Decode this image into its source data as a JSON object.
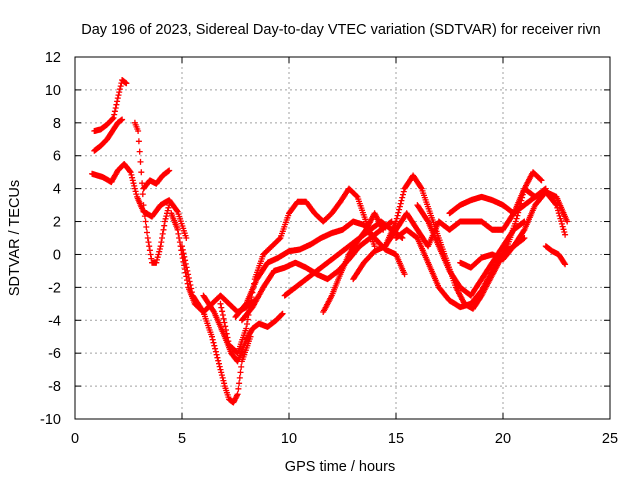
{
  "chart_data": {
    "type": "scatter",
    "title": "Day 196 of 2023, Sidereal Day-to-day VTEC variation (SDTVAR) for receiver rivn",
    "xlabel": "GPS time / hours",
    "ylabel": "SDTVAR / TECUs",
    "xlim": [
      0,
      25
    ],
    "ylim": [
      -10,
      12
    ],
    "x_ticks": [
      "0",
      "5",
      "10",
      "15",
      "20",
      "25"
    ],
    "y_ticks": [
      "-10",
      "-8",
      "-6",
      "-4",
      "-2",
      "0",
      "2",
      "4",
      "6",
      "8",
      "10",
      "12"
    ],
    "grid": true,
    "marker": "+",
    "series_color": "#ff0000",
    "series": [
      {
        "x": [
          0.9,
          1.2,
          1.5,
          1.8,
          2.0,
          2.2,
          2.4
        ],
        "y": [
          7.5,
          7.6,
          7.9,
          8.3,
          9.5,
          10.6,
          10.4
        ]
      },
      {
        "x": [
          0.9,
          1.2,
          1.5,
          1.8,
          2.0,
          2.2
        ],
        "y": [
          6.3,
          6.6,
          7.0,
          7.6,
          8.0,
          8.2
        ]
      },
      {
        "x": [
          0.8,
          1.3,
          1.7,
          2.0,
          2.3,
          2.6,
          2.9,
          3.2,
          3.6,
          4.0,
          4.4,
          4.8,
          5.2
        ],
        "y": [
          4.9,
          4.7,
          4.4,
          5.1,
          5.5,
          5.0,
          3.5,
          2.6,
          2.3,
          3.0,
          3.3,
          2.6,
          1.0
        ]
      },
      {
        "x": [
          2.8,
          2.95,
          3.1,
          3.2,
          3.4,
          3.6,
          3.8,
          4.0,
          4.2,
          4.4
        ],
        "y": [
          8.0,
          7.5,
          5.0,
          3.0,
          1.0,
          -0.5,
          -0.5,
          0.5,
          2.0,
          3.0
        ]
      },
      {
        "x": [
          3.2,
          3.5,
          3.8,
          4.1,
          4.4
        ],
        "y": [
          4.0,
          4.5,
          4.3,
          4.8,
          5.1
        ]
      },
      {
        "x": [
          4.5,
          4.8,
          5.0,
          5.3,
          5.6,
          6.0,
          6.4,
          6.8,
          7.2,
          7.6,
          8.0,
          8.4
        ],
        "y": [
          2.5,
          1.5,
          0.0,
          -2.0,
          -3.0,
          -3.5,
          -3.0,
          -2.5,
          -3.0,
          -3.5,
          -3.2,
          -2.8
        ]
      },
      {
        "x": [
          5.0,
          5.5,
          6.0,
          6.4,
          6.8,
          7.0,
          7.2,
          7.4,
          7.6,
          7.8,
          8.2
        ],
        "y": [
          0.5,
          -2.5,
          -3.5,
          -5.0,
          -7.0,
          -8.0,
          -8.8,
          -9.0,
          -8.5,
          -6.5,
          -5.0
        ]
      },
      {
        "x": [
          6.0,
          6.5,
          7.0,
          7.3,
          7.6,
          8.0,
          8.3,
          8.6,
          9.0,
          9.4,
          9.7
        ],
        "y": [
          -2.5,
          -3.5,
          -5.0,
          -6.0,
          -6.5,
          -5.2,
          -4.5,
          -4.2,
          -4.4,
          -4.0,
          -3.6
        ]
      },
      {
        "x": [
          6.8,
          7.2,
          7.6,
          8.0,
          8.4,
          8.8,
          9.2,
          9.6,
          10.0,
          10.4,
          10.8,
          11.2,
          11.6,
          12.0,
          12.4,
          12.8,
          13.2,
          13.6,
          14.0
        ],
        "y": [
          -3.0,
          -5.5,
          -6.0,
          -4.5,
          -1.5,
          0.0,
          0.5,
          1.0,
          2.5,
          3.2,
          3.2,
          2.5,
          2.0,
          2.5,
          3.2,
          4.0,
          3.5,
          2.0,
          0.5
        ]
      },
      {
        "x": [
          7.5,
          8.0,
          8.5,
          9.0,
          9.5,
          10.0,
          10.5,
          11.0,
          11.5,
          12.0,
          12.5,
          13.0,
          13.5,
          14.0,
          14.5,
          15.0,
          15.4
        ],
        "y": [
          -3.8,
          -3.0,
          -1.5,
          -0.5,
          -0.2,
          0.2,
          0.3,
          0.6,
          1.0,
          1.3,
          1.5,
          2.0,
          1.8,
          1.0,
          0.3,
          0.0,
          -1.2
        ]
      },
      {
        "x": [
          7.8,
          8.3,
          8.8,
          9.3,
          9.8,
          10.3,
          10.8,
          11.3,
          11.8,
          12.3,
          12.8,
          13.3,
          13.8,
          14.3,
          14.8
        ],
        "y": [
          -4.0,
          -3.2,
          -2.0,
          -1.0,
          -0.8,
          -0.5,
          -0.8,
          -1.2,
          -1.5,
          -1.0,
          -0.3,
          0.5,
          1.0,
          1.5,
          2.0
        ]
      },
      {
        "x": [
          9.8,
          10.3,
          10.8,
          11.3,
          11.8,
          12.3,
          12.8,
          13.3,
          13.8,
          14.3,
          14.8,
          15.3
        ],
        "y": [
          -2.5,
          -2.0,
          -1.5,
          -1.0,
          -0.5,
          0.0,
          0.5,
          1.0,
          1.5,
          2.0,
          1.5,
          1.0
        ]
      },
      {
        "x": [
          11.6,
          12.0,
          12.4,
          12.8,
          13.2,
          13.6,
          14.0,
          14.4
        ],
        "y": [
          -3.5,
          -2.5,
          -1.2,
          0.0,
          0.8,
          1.5,
          2.5,
          1.5
        ]
      },
      {
        "x": [
          13.0,
          13.5,
          14.0,
          14.5,
          15.0,
          15.5,
          16.0,
          16.5,
          17.0,
          17.5,
          18.0,
          18.5,
          19.0,
          19.5,
          20.0,
          20.5,
          21.0,
          21.5,
          22.0,
          22.5,
          22.9
        ],
        "y": [
          -1.5,
          -0.5,
          0.2,
          0.5,
          1.5,
          2.5,
          1.5,
          0.5,
          2.0,
          1.5,
          2.0,
          2.0,
          2.0,
          1.5,
          1.5,
          2.5,
          4.0,
          3.5,
          3.8,
          3.0,
          1.2
        ]
      },
      {
        "x": [
          14.5,
          15.0,
          15.4,
          15.8,
          16.2,
          16.6,
          17.0,
          17.4,
          17.8,
          18.2,
          18.6,
          19.0,
          19.4,
          19.8,
          20.2,
          20.6,
          21.0,
          21.4,
          21.8
        ],
        "y": [
          0.5,
          2.0,
          4.0,
          4.8,
          4.0,
          2.5,
          1.0,
          -0.5,
          -2.0,
          -3.0,
          -3.3,
          -2.5,
          -1.5,
          -0.5,
          0.5,
          2.0,
          4.0,
          5.0,
          4.5
        ]
      },
      {
        "x": [
          15.0,
          15.5,
          16.0,
          16.5,
          17.0,
          17.5,
          18.0,
          18.5,
          19.0,
          19.5,
          20.0,
          20.5,
          21.0
        ],
        "y": [
          1.0,
          1.5,
          1.0,
          -0.5,
          -2.0,
          -2.8,
          -3.2,
          -3.0,
          -2.2,
          -1.0,
          0.0,
          0.5,
          1.0
        ]
      },
      {
        "x": [
          16.0,
          16.5,
          17.0,
          17.5,
          18.0,
          18.5,
          19.0,
          19.5,
          20.0,
          20.5,
          21.0
        ],
        "y": [
          3.0,
          2.0,
          0.5,
          -1.0,
          -2.0,
          -2.5,
          -1.5,
          -0.5,
          0.5,
          1.5,
          2.0
        ]
      },
      {
        "x": [
          17.5,
          18.0,
          18.5,
          19.0,
          19.5,
          20.0,
          20.5,
          21.0,
          21.5,
          22.0
        ],
        "y": [
          2.5,
          3.0,
          3.3,
          3.5,
          3.3,
          3.0,
          2.5,
          3.0,
          3.5,
          4.0
        ]
      },
      {
        "x": [
          18.0,
          18.5,
          19.0,
          19.5,
          20.0,
          20.5,
          21.0,
          21.5,
          22.0,
          22.5,
          23.0
        ],
        "y": [
          -0.5,
          -0.8,
          -0.2,
          0.0,
          -0.3,
          0.5,
          1.5,
          3.0,
          3.8,
          3.5,
          2.0
        ]
      },
      {
        "x": [
          22.0,
          22.3,
          22.6,
          22.9
        ],
        "y": [
          0.5,
          0.2,
          0.0,
          -0.6
        ]
      }
    ]
  }
}
